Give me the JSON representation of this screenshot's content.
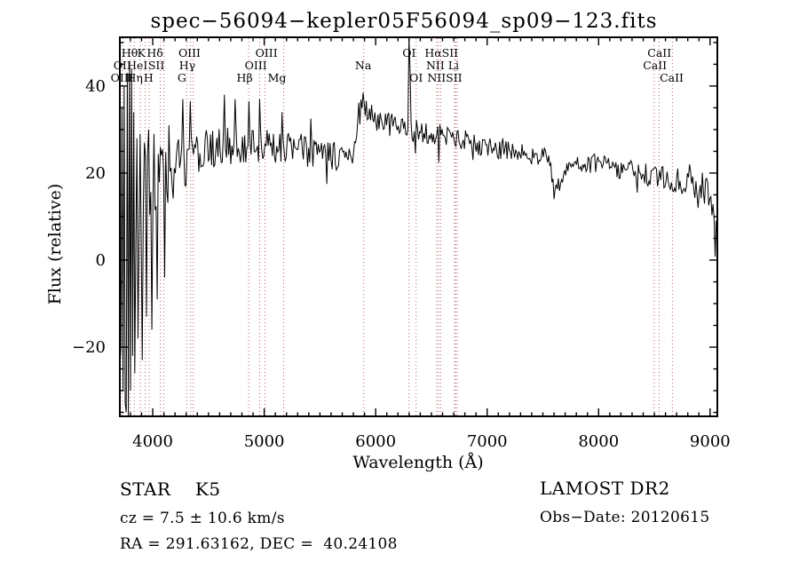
{
  "figure": {
    "title": "spec−56094−kepler05F56094_sp09−123.fits",
    "background": "#ffffff"
  },
  "annotations": {
    "class_line": "STAR    K5",
    "cz_line": "cz = 7.5 ± 10.6 km/s",
    "radec_line": "RA = 291.63162, DEC =  40.24108",
    "survey_line": "LAMOST DR2",
    "obsdate_line": "Obs−Date: 20120615"
  },
  "chart_data": {
    "type": "line",
    "title": "spec−56094−kepler05F56094_sp09−123.fits",
    "xlabel": "Wavelength (Å)",
    "ylabel": "Flux (relative)",
    "xlim": [
      3705,
      9065
    ],
    "ylim": [
      -35.9,
      51.2
    ],
    "xticks": [
      4000,
      5000,
      6000,
      7000,
      8000,
      9000
    ],
    "yticks": [
      -20,
      0,
      20,
      40
    ],
    "xtick_minor_step": 100,
    "ytick_minor_step": 5,
    "grid": false,
    "line_color": "#000000",
    "marker_line_color": "#b46060",
    "spectral_line_markers": [
      3727,
      3798,
      3835,
      3889,
      3933,
      3968,
      4068,
      4101,
      4305,
      4340,
      4363,
      4861,
      4959,
      5007,
      5175,
      5893,
      6300,
      6363,
      6548,
      6563,
      6583,
      6707,
      6716,
      6731,
      8498,
      8542,
      8662
    ],
    "spectral_line_labels": [
      {
        "row": 1,
        "text": "Hθ",
        "wl": 3793
      },
      {
        "row": 1,
        "text": "K",
        "wl": 3898
      },
      {
        "row": 1,
        "text": "Hδ",
        "wl": 4020
      },
      {
        "row": 1,
        "text": "OIII",
        "wl": 4330
      },
      {
        "row": 1,
        "text": "OIII",
        "wl": 5020
      },
      {
        "row": 1,
        "text": "OI",
        "wl": 6300
      },
      {
        "row": 1,
        "text": "HαSII",
        "wl": 6590
      },
      {
        "row": 1,
        "text": "CaII",
        "wl": 8545
      },
      {
        "row": 2,
        "text": "OII",
        "wl": 3727
      },
      {
        "row": 2,
        "text": "HeI",
        "wl": 3862
      },
      {
        "row": 2,
        "text": "SII",
        "wl": 4032
      },
      {
        "row": 2,
        "text": "Hγ",
        "wl": 4310
      },
      {
        "row": 2,
        "text": "OIII",
        "wl": 4925
      },
      {
        "row": 2,
        "text": "Na",
        "wl": 5888
      },
      {
        "row": 2,
        "text": "NII Li",
        "wl": 6600
      },
      {
        "row": 2,
        "text": "CaII",
        "wl": 8505
      },
      {
        "row": 3,
        "text": "OIII",
        "wl": 3722
      },
      {
        "row": 3,
        "text": "Hη",
        "wl": 3838
      },
      {
        "row": 3,
        "text": "H",
        "wl": 3962
      },
      {
        "row": 3,
        "text": "G",
        "wl": 4262
      },
      {
        "row": 3,
        "text": "Hβ",
        "wl": 4825
      },
      {
        "row": 3,
        "text": "Mg",
        "wl": 5115
      },
      {
        "row": 3,
        "text": "OI",
        "wl": 6363
      },
      {
        "row": 3,
        "text": "NIISII",
        "wl": 6620
      },
      {
        "row": 3,
        "text": "CaII",
        "wl": 8655
      }
    ],
    "flux_envelope_points": [
      [
        3705,
        10
      ],
      [
        3730,
        7
      ],
      [
        3760,
        10
      ],
      [
        3800,
        11
      ],
      [
        3850,
        12.5
      ],
      [
        3900,
        14
      ],
      [
        3950,
        15.5
      ],
      [
        4000,
        17.5
      ],
      [
        4100,
        20
      ],
      [
        4200,
        21
      ],
      [
        4300,
        22.5
      ],
      [
        4400,
        24
      ],
      [
        4500,
        25
      ],
      [
        4700,
        26
      ],
      [
        4900,
        26.5
      ],
      [
        5100,
        26
      ],
      [
        5300,
        25.5
      ],
      [
        5500,
        24.5
      ],
      [
        5650,
        23.5
      ],
      [
        5760,
        22.5
      ],
      [
        5800,
        26
      ],
      [
        5840,
        33
      ],
      [
        5900,
        35
      ],
      [
        5960,
        33.5
      ],
      [
        6050,
        32
      ],
      [
        6150,
        31
      ],
      [
        6250,
        30.2
      ],
      [
        6350,
        29.8
      ],
      [
        6450,
        29.4
      ],
      [
        6550,
        29
      ],
      [
        6650,
        28.4
      ],
      [
        6750,
        27.8
      ],
      [
        6850,
        27
      ],
      [
        6950,
        26.3
      ],
      [
        7050,
        25.8
      ],
      [
        7150,
        25.3
      ],
      [
        7250,
        24.8
      ],
      [
        7350,
        24.3
      ],
      [
        7450,
        23.9
      ],
      [
        7550,
        23.4
      ],
      [
        7585,
        19
      ],
      [
        7620,
        16.5
      ],
      [
        7660,
        17.5
      ],
      [
        7700,
        20.5
      ],
      [
        7740,
        22.3
      ],
      [
        7800,
        22.6
      ],
      [
        7900,
        22.4
      ],
      [
        8000,
        22
      ],
      [
        8100,
        21.5
      ],
      [
        8200,
        21
      ],
      [
        8300,
        20.4
      ],
      [
        8400,
        19.8
      ],
      [
        8500,
        19.2
      ],
      [
        8600,
        18.6
      ],
      [
        8700,
        18.2
      ],
      [
        8800,
        17.7
      ],
      [
        8900,
        17.2
      ],
      [
        8960,
        16.3
      ],
      [
        9000,
        15.5
      ],
      [
        9020,
        13
      ],
      [
        9040,
        11
      ],
      [
        9055,
        9
      ]
    ],
    "noise_halfamp_points": [
      [
        3705,
        22
      ],
      [
        3750,
        18
      ],
      [
        3800,
        15
      ],
      [
        3850,
        13
      ],
      [
        3900,
        11
      ],
      [
        3950,
        10
      ],
      [
        4000,
        9.5
      ],
      [
        4100,
        7.5
      ],
      [
        4250,
        6.5
      ],
      [
        4400,
        5.5
      ],
      [
        4600,
        4.8
      ],
      [
        4800,
        4.3
      ],
      [
        5000,
        4
      ],
      [
        5300,
        3.8
      ],
      [
        5600,
        3.6
      ],
      [
        5900,
        3.2
      ],
      [
        6200,
        2.8
      ],
      [
        6500,
        2.6
      ],
      [
        6900,
        2.4
      ],
      [
        7300,
        2.2
      ],
      [
        7700,
        2.2
      ],
      [
        8100,
        2.3
      ],
      [
        8500,
        2.6
      ],
      [
        8800,
        3.2
      ],
      [
        9000,
        3.6
      ],
      [
        9055,
        3
      ]
    ],
    "feature_spikes": [
      [
        3706,
        -25
      ],
      [
        3711,
        38
      ],
      [
        3718,
        -20
      ],
      [
        3726,
        35
      ],
      [
        3734,
        -30
      ],
      [
        3742,
        40
      ],
      [
        3750,
        -33
      ],
      [
        3758,
        36
      ],
      [
        3766,
        -35
      ],
      [
        3776,
        43
      ],
      [
        3786,
        -36
      ],
      [
        3794,
        45
      ],
      [
        3802,
        -30
      ],
      [
        3810,
        44
      ],
      [
        3818,
        -22
      ],
      [
        3830,
        34
      ],
      [
        3842,
        -26
      ],
      [
        3856,
        28
      ],
      [
        3870,
        -18
      ],
      [
        3886,
        29
      ],
      [
        3904,
        -23
      ],
      [
        3922,
        27
      ],
      [
        3942,
        -13
      ],
      [
        3964,
        30
      ],
      [
        3988,
        -16
      ],
      [
        4014,
        29
      ],
      [
        4042,
        -9
      ],
      [
        4072,
        26
      ],
      [
        4104,
        -4
      ],
      [
        4150,
        31
      ],
      [
        4270,
        37
      ],
      [
        4340,
        36.5
      ],
      [
        4640,
        38
      ],
      [
        4740,
        37
      ],
      [
        4860,
        36.5
      ],
      [
        4960,
        37
      ],
      [
        5160,
        34
      ],
      [
        5420,
        32.5
      ],
      [
        5560,
        17.5
      ],
      [
        5890,
        38.5
      ],
      [
        6298,
        51
      ],
      [
        6307,
        44
      ],
      [
        6360,
        24.5
      ],
      [
        6565,
        22.5
      ],
      [
        6870,
        23
      ],
      [
        7140,
        28
      ],
      [
        7600,
        14
      ],
      [
        8350,
        15.5
      ],
      [
        8817,
        22
      ],
      [
        8890,
        12
      ],
      [
        9050,
        0.8
      ]
    ],
    "noise_seed": 20,
    "n_samples": 560
  }
}
